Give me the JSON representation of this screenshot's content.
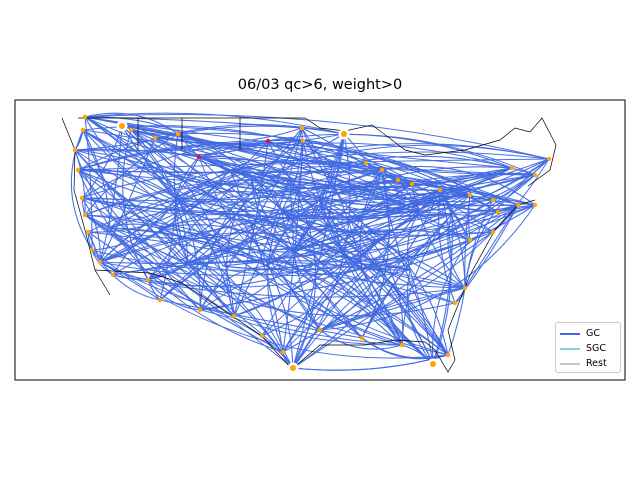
{
  "chart_data": {
    "type": "map",
    "title": "06/03 qc>6, weight>0",
    "legend": {
      "placement": "lower-right",
      "entries": [
        {
          "label": "GC",
          "color": "#4169e1"
        },
        {
          "label": "SGC",
          "color": "#87ceeb"
        },
        {
          "label": "Rest",
          "color": "#c8c8c8"
        }
      ]
    },
    "edge_color": "#4169e1",
    "node_color": "#ffa500",
    "highlight_node_color": "#dc143c",
    "extent_lon": [
      -128,
      -64
    ],
    "extent_lat": [
      23,
      50
    ]
  }
}
